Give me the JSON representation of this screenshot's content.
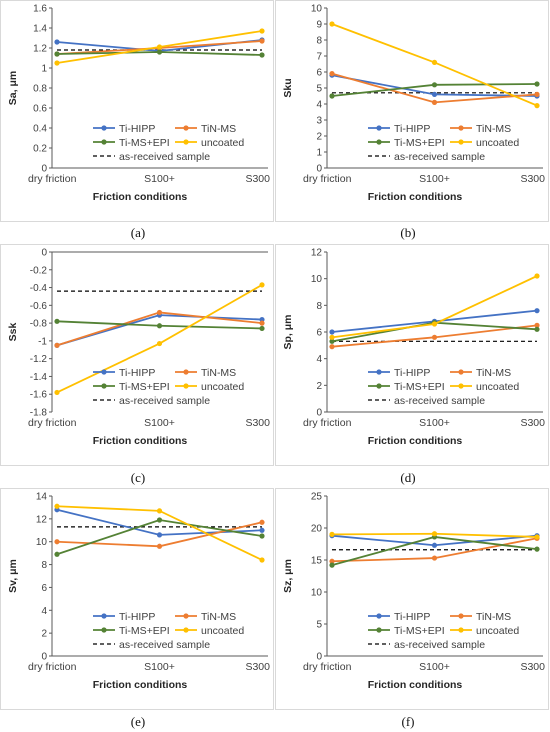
{
  "categories": [
    "dry friction",
    "S100+",
    "S300"
  ],
  "x_axis_label": "Friction conditions",
  "series_colors": [
    "#4472C4",
    "#ED7D31",
    "#548235",
    "#FFC000"
  ],
  "reference_color": "#000000",
  "chart_data": [
    {
      "type": "line",
      "caption": "(a)",
      "ylabel": "Sa, μm",
      "xlabel": "Friction conditions",
      "categories": [
        "dry friction",
        "S100+",
        "S300"
      ],
      "ylim": [
        0,
        1.6
      ],
      "yticks": [
        0,
        0.2,
        0.4,
        0.6,
        0.8,
        1,
        1.2,
        1.4,
        1.6
      ],
      "series": [
        {
          "name": "Ti-HIPP",
          "values": [
            1.26,
            1.17,
            1.28
          ]
        },
        {
          "name": "TiN-MS",
          "values": [
            1.14,
            1.2,
            1.27
          ]
        },
        {
          "name": "Ti-MS+EPI",
          "values": [
            1.14,
            1.16,
            1.13
          ]
        },
        {
          "name": "uncoated",
          "values": [
            1.05,
            1.21,
            1.37
          ]
        }
      ],
      "reference": {
        "name": "as-received sample",
        "value": 1.18
      },
      "legend": "bottom"
    },
    {
      "type": "line",
      "caption": "(b)",
      "ylabel": "Sku",
      "xlabel": "Friction conditions",
      "categories": [
        "dry friction",
        "S100+",
        "S300"
      ],
      "ylim": [
        0,
        10
      ],
      "yticks": [
        0,
        1,
        2,
        3,
        4,
        5,
        6,
        7,
        8,
        9,
        10
      ],
      "series": [
        {
          "name": "Ti-HIPP",
          "values": [
            5.8,
            4.6,
            4.5
          ]
        },
        {
          "name": "TiN-MS",
          "values": [
            5.9,
            4.1,
            4.6
          ]
        },
        {
          "name": "Ti-MS+EPI",
          "values": [
            4.5,
            5.2,
            5.25
          ]
        },
        {
          "name": "uncoated",
          "values": [
            9.0,
            6.6,
            3.9
          ]
        }
      ],
      "reference": {
        "name": "as-received sample",
        "value": 4.7
      },
      "legend": "bottom"
    },
    {
      "type": "line",
      "caption": "(c)",
      "ylabel": "Ssk",
      "xlabel": "Friction conditions",
      "categories": [
        "dry friction",
        "S100+",
        "S300"
      ],
      "ylim": [
        -1.8,
        0
      ],
      "yticks": [
        -1.8,
        -1.6,
        -1.4,
        -1.2,
        -1,
        -0.8,
        -0.6,
        -0.4,
        -0.2,
        0
      ],
      "series": [
        {
          "name": "Ti-HIPP",
          "values": [
            -1.05,
            -0.71,
            -0.76
          ]
        },
        {
          "name": "TiN-MS",
          "values": [
            -1.05,
            -0.68,
            -0.8
          ]
        },
        {
          "name": "Ti-MS+EPI",
          "values": [
            -0.78,
            -0.83,
            -0.86
          ]
        },
        {
          "name": "uncoated",
          "values": [
            -1.58,
            -1.03,
            -0.37
          ]
        }
      ],
      "reference": {
        "name": "as-received sample",
        "value": -0.44
      },
      "legend": "bottom"
    },
    {
      "type": "line",
      "caption": "(d)",
      "ylabel": "Sp, μm",
      "xlabel": "Friction conditions",
      "categories": [
        "dry friction",
        "S100+",
        "S300"
      ],
      "ylim": [
        0,
        12
      ],
      "yticks": [
        0,
        2,
        4,
        6,
        8,
        10,
        12
      ],
      "series": [
        {
          "name": "Ti-HIPP",
          "values": [
            6.0,
            6.8,
            7.6
          ]
        },
        {
          "name": "TiN-MS",
          "values": [
            4.9,
            5.6,
            6.5
          ]
        },
        {
          "name": "Ti-MS+EPI",
          "values": [
            5.3,
            6.7,
            6.2
          ]
        },
        {
          "name": "uncoated",
          "values": [
            5.6,
            6.6,
            10.2
          ]
        }
      ],
      "reference": {
        "name": "as-received sample",
        "value": 5.3
      },
      "legend": "bottom"
    },
    {
      "type": "line",
      "caption": "(e)",
      "ylabel": "Sv, μm",
      "xlabel": "Friction conditions",
      "categories": [
        "dry friction",
        "S100+",
        "S300"
      ],
      "ylim": [
        0,
        14
      ],
      "yticks": [
        0,
        2,
        4,
        6,
        8,
        10,
        12,
        14
      ],
      "series": [
        {
          "name": "Ti-HIPP",
          "values": [
            12.8,
            10.6,
            11.0
          ]
        },
        {
          "name": "TiN-MS",
          "values": [
            10.0,
            9.6,
            11.7
          ]
        },
        {
          "name": "Ti-MS+EPI",
          "values": [
            8.9,
            11.9,
            10.5
          ]
        },
        {
          "name": "uncoated",
          "values": [
            13.1,
            12.7,
            8.4
          ]
        }
      ],
      "reference": {
        "name": "as-received sample",
        "value": 11.3
      },
      "legend": "bottom"
    },
    {
      "type": "line",
      "caption": "(f)",
      "ylabel": "Sz, μm",
      "xlabel": "Friction conditions",
      "categories": [
        "dry friction",
        "S100+",
        "S300"
      ],
      "ylim": [
        0,
        25
      ],
      "yticks": [
        0,
        5,
        10,
        15,
        20,
        25
      ],
      "series": [
        {
          "name": "Ti-HIPP",
          "values": [
            18.8,
            17.3,
            18.8
          ]
        },
        {
          "name": "TiN-MS",
          "values": [
            14.8,
            15.3,
            18.4
          ]
        },
        {
          "name": "Ti-MS+EPI",
          "values": [
            14.2,
            18.6,
            16.7
          ]
        },
        {
          "name": "uncoated",
          "values": [
            19.0,
            19.1,
            18.6
          ]
        }
      ],
      "reference": {
        "name": "as-received sample",
        "value": 16.6
      },
      "legend": "bottom"
    }
  ]
}
